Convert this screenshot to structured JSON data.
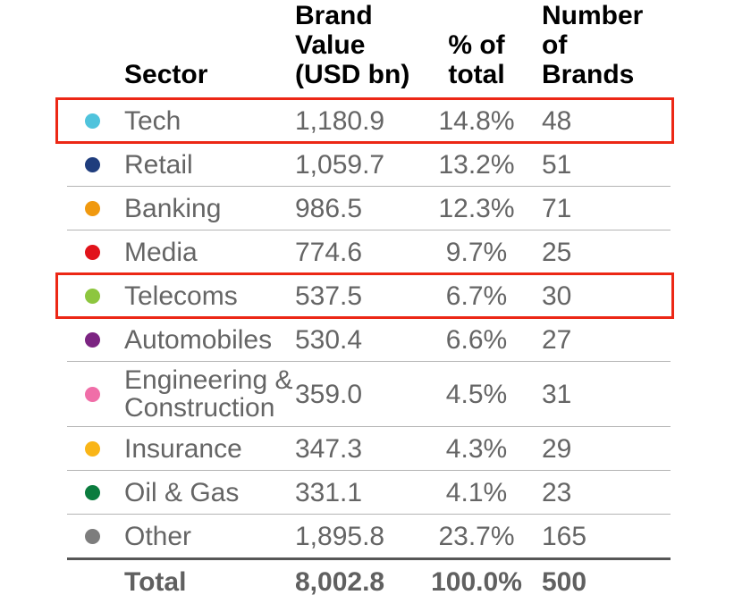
{
  "header": {
    "sector": "Sector",
    "brand_value": "Brand\nValue\n(USD bn)",
    "pct_of_total": "% of\ntotal",
    "number_of_brands": "Number of\nBrands"
  },
  "table": {
    "rows": [
      {
        "sector": "Tech",
        "dot_color": "#4FC3DC",
        "value": "1,180.9",
        "pct": "14.8%",
        "brands": "48",
        "highlighted": true
      },
      {
        "sector": "Retail",
        "dot_color": "#1F3D7D",
        "value": "1,059.7",
        "pct": "13.2%",
        "brands": "51",
        "highlighted": false
      },
      {
        "sector": "Banking",
        "dot_color": "#F0990F",
        "value": "986.5",
        "pct": "12.3%",
        "brands": "71",
        "highlighted": false
      },
      {
        "sector": "Media",
        "dot_color": "#E1131A",
        "value": "774.6",
        "pct": "9.7%",
        "brands": "25",
        "highlighted": false
      },
      {
        "sector": "Telecoms",
        "dot_color": "#8DC63F",
        "value": "537.5",
        "pct": "6.7%",
        "brands": "30",
        "highlighted": true
      },
      {
        "sector": "Automobiles",
        "dot_color": "#7C2482",
        "value": "530.4",
        "pct": "6.6%",
        "brands": "27",
        "highlighted": false
      },
      {
        "sector": "Engineering &\nConstruction",
        "dot_color": "#F06EA8",
        "value": "359.0",
        "pct": "4.5%",
        "brands": "31",
        "highlighted": false
      },
      {
        "sector": "Insurance",
        "dot_color": "#F9B517",
        "value": "347.3",
        "pct": "4.3%",
        "brands": "29",
        "highlighted": false
      },
      {
        "sector": "Oil & Gas",
        "dot_color": "#0B7C3E",
        "value": "331.1",
        "pct": "4.1%",
        "brands": "23",
        "highlighted": false
      },
      {
        "sector": "Other",
        "dot_color": "#7D7D7D",
        "value": "1,895.8",
        "pct": "23.7%",
        "brands": "165",
        "highlighted": false
      }
    ],
    "total": {
      "label": "Total",
      "value": "8,002.8",
      "pct": "100.0%",
      "brands": "500"
    }
  },
  "colors": {
    "highlight_border": "#EC2715",
    "row_text": "#656565",
    "divider": "#B4B4B4",
    "total_rule": "#575757"
  },
  "chart_data": {
    "type": "table",
    "columns": [
      "Sector",
      "Brand Value (USD bn)",
      "% of total",
      "Number of Brands"
    ],
    "rows": [
      {
        "sector": "Tech",
        "brand_value_usd_bn": 1180.9,
        "pct_of_total": 14.8,
        "number_of_brands": 48
      },
      {
        "sector": "Retail",
        "brand_value_usd_bn": 1059.7,
        "pct_of_total": 13.2,
        "number_of_brands": 51
      },
      {
        "sector": "Banking",
        "brand_value_usd_bn": 986.5,
        "pct_of_total": 12.3,
        "number_of_brands": 71
      },
      {
        "sector": "Media",
        "brand_value_usd_bn": 774.6,
        "pct_of_total": 9.7,
        "number_of_brands": 25
      },
      {
        "sector": "Telecoms",
        "brand_value_usd_bn": 537.5,
        "pct_of_total": 6.7,
        "number_of_brands": 30
      },
      {
        "sector": "Automobiles",
        "brand_value_usd_bn": 530.4,
        "pct_of_total": 6.6,
        "number_of_brands": 27
      },
      {
        "sector": "Engineering & Construction",
        "brand_value_usd_bn": 359.0,
        "pct_of_total": 4.5,
        "number_of_brands": 31
      },
      {
        "sector": "Insurance",
        "brand_value_usd_bn": 347.3,
        "pct_of_total": 4.3,
        "number_of_brands": 29
      },
      {
        "sector": "Oil & Gas",
        "brand_value_usd_bn": 331.1,
        "pct_of_total": 4.1,
        "number_of_brands": 23
      },
      {
        "sector": "Other",
        "brand_value_usd_bn": 1895.8,
        "pct_of_total": 23.7,
        "number_of_brands": 165
      }
    ],
    "total": {
      "sector": "Total",
      "brand_value_usd_bn": 8002.8,
      "pct_of_total": 100.0,
      "number_of_brands": 500
    },
    "highlighted_rows": [
      "Tech",
      "Telecoms"
    ],
    "row_dot_colors": [
      "#4FC3DC",
      "#1F3D7D",
      "#F0990F",
      "#E1131A",
      "#8DC63F",
      "#7C2482",
      "#F06EA8",
      "#F9B517",
      "#0B7C3E",
      "#7D7D7D"
    ]
  }
}
